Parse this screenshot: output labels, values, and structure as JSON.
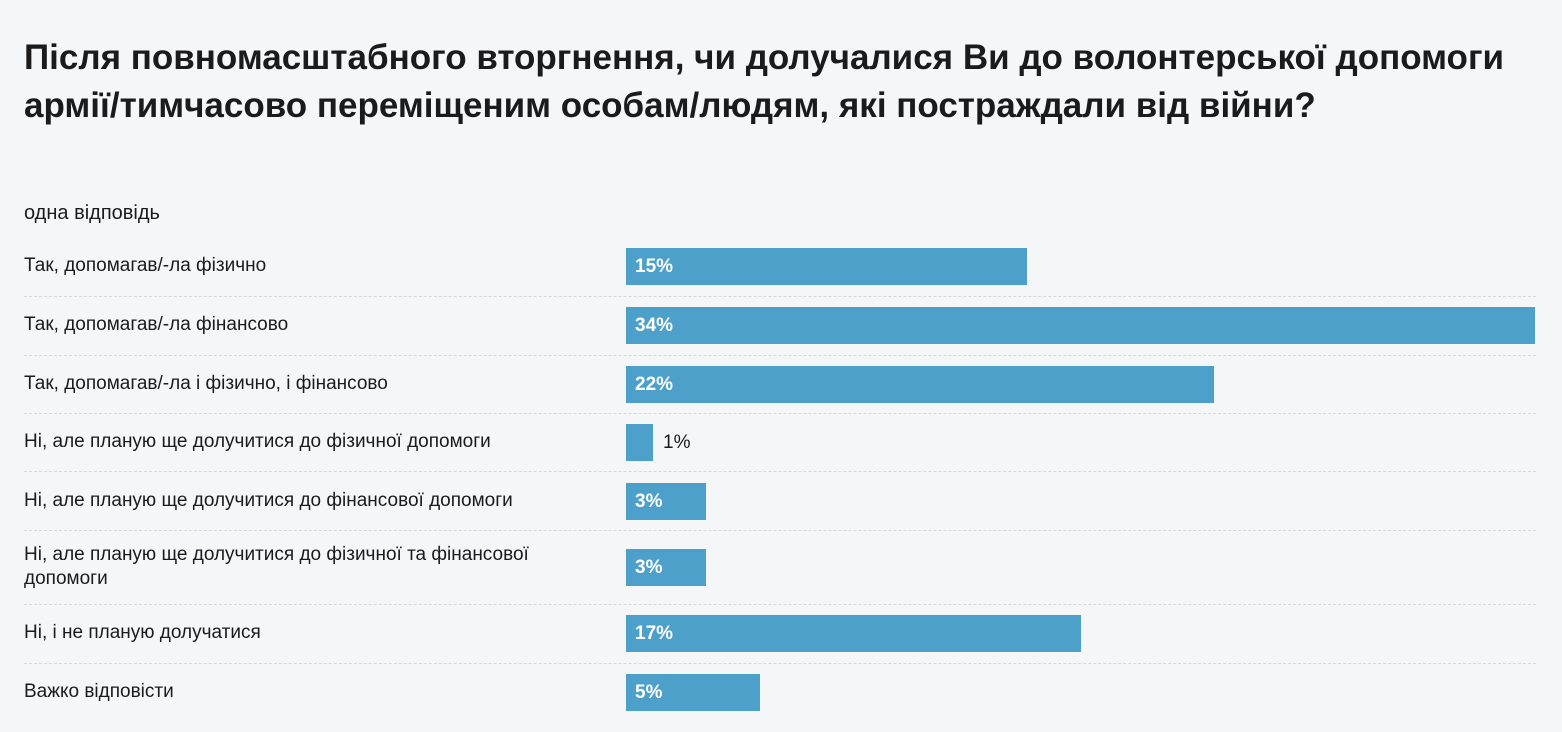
{
  "chart_data": {
    "type": "bar",
    "orientation": "horizontal",
    "title": "Після повномасштабного вторгнення, чи долучалися Ви до волонтерської допомоги армії/тимчасово переміщеним особам/людям, які постраждали від війни?",
    "subtitle": "одна відповідь",
    "categories": [
      "Так, допомагав/-ла фізично",
      "Так, допомагав/-ла фінансово",
      "Так, допомагав/-ла і фізично, і фінансово",
      "Ні, але планую ще долучитися до фізичної допомоги",
      "Ні, але планую ще долучитися до фінансової допомоги",
      "Ні, але планую ще долучитися до фізичної та фінансової допомоги",
      "Ні, і не планую долучатися",
      "Важко відповісти"
    ],
    "values": [
      15,
      34,
      22,
      1,
      3,
      3,
      17,
      5
    ],
    "value_labels": [
      "15%",
      "34%",
      "22%",
      "1%",
      "3%",
      "3%",
      "17%",
      "5%"
    ],
    "xlim": [
      0,
      34
    ],
    "bar_color": "#4da0c9",
    "grid": false,
    "legend": "none"
  }
}
